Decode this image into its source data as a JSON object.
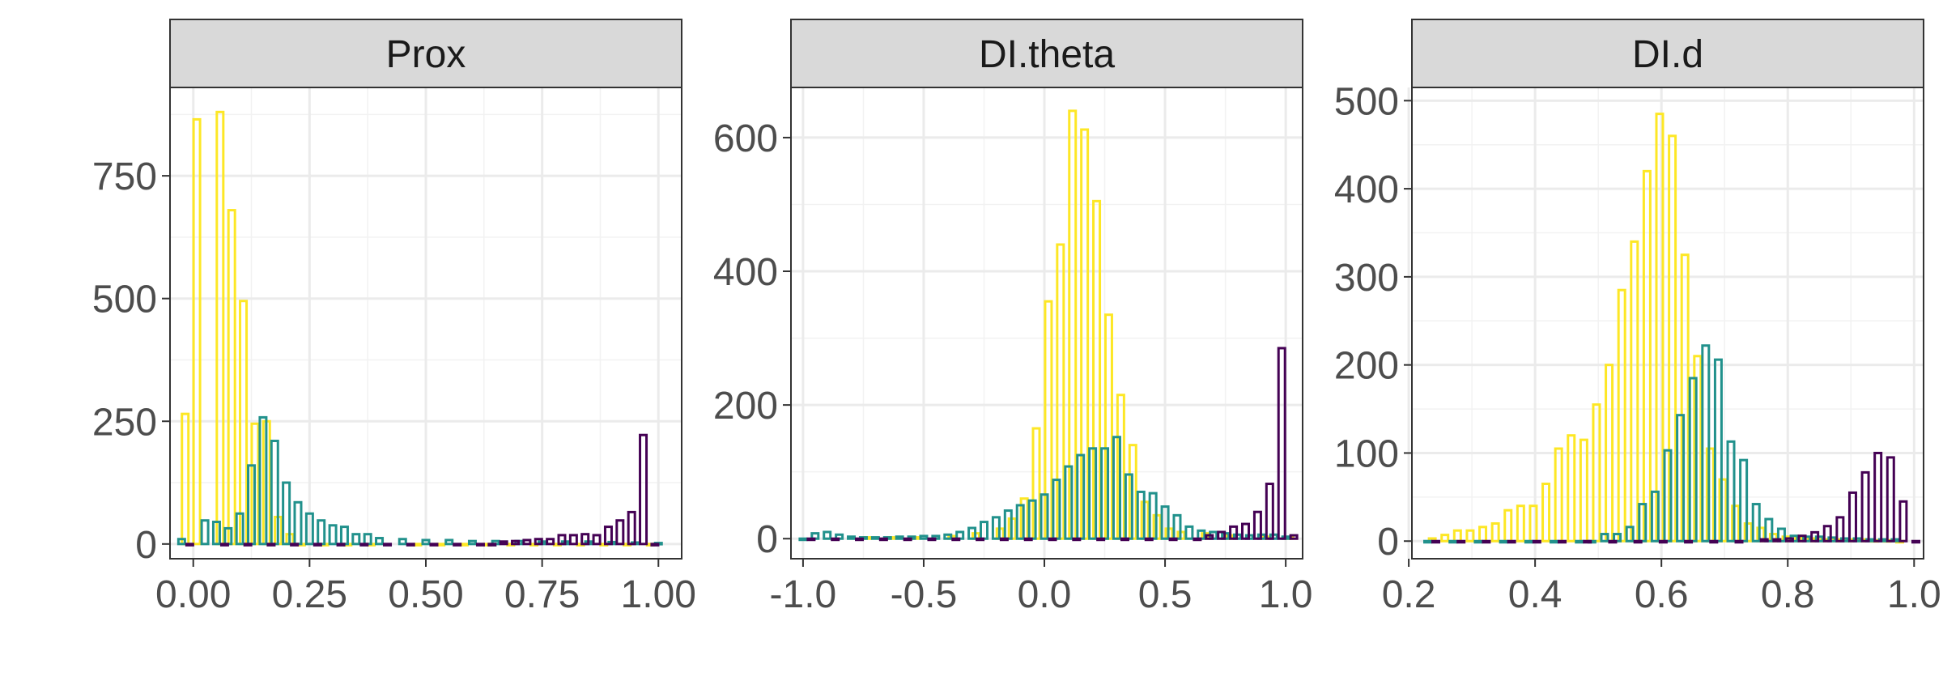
{
  "chart_data": [
    {
      "type": "bar",
      "title": "Prox",
      "xlim": [
        -0.05,
        1.05
      ],
      "ylim": [
        -30,
        930
      ],
      "xticks": [
        0.0,
        0.25,
        0.5,
        0.75,
        1.0
      ],
      "xtick_labels": [
        "0.00",
        "0.25",
        "0.50",
        "0.75",
        "1.00"
      ],
      "yticks": [
        0,
        250,
        500,
        750
      ],
      "ytick_labels": [
        "0",
        "250",
        "500",
        "750"
      ],
      "grid": true,
      "series_colors": [
        "#FDE725",
        "#21918C",
        "#440154"
      ],
      "series": [
        {
          "x": [
            0.0,
            0.025,
            0.075,
            0.1,
            0.125,
            0.15,
            0.175,
            0.2,
            0.225,
            0.25,
            0.3,
            0.35,
            0.4,
            0.5,
            0.55,
            0.6,
            0.65,
            0.7,
            0.75,
            0.8,
            0.85,
            0.9,
            0.95,
            1.0
          ],
          "values": [
            265,
            865,
            880,
            680,
            495,
            245,
            250,
            55,
            20,
            0,
            0,
            0,
            0,
            0,
            0,
            0,
            0,
            0,
            0,
            0,
            0,
            0,
            0,
            0
          ]
        },
        {
          "x": [
            -0.025,
            0.025,
            0.05,
            0.075,
            0.1,
            0.125,
            0.15,
            0.175,
            0.2,
            0.225,
            0.25,
            0.275,
            0.3,
            0.325,
            0.35,
            0.375,
            0.4,
            0.45,
            0.5,
            0.55,
            0.6,
            0.65,
            0.7,
            0.75,
            0.8,
            0.85,
            0.9,
            0.95,
            1.0
          ],
          "values": [
            10,
            48,
            45,
            32,
            62,
            160,
            258,
            210,
            125,
            85,
            62,
            48,
            38,
            35,
            20,
            20,
            12,
            10,
            8,
            8,
            6,
            6,
            6,
            5,
            5,
            5,
            4,
            3,
            2
          ]
        },
        {
          "x": [
            -0.025,
            0.05,
            0.1,
            0.15,
            0.2,
            0.25,
            0.3,
            0.35,
            0.4,
            0.45,
            0.5,
            0.55,
            0.6,
            0.625,
            0.65,
            0.675,
            0.7,
            0.725,
            0.75,
            0.775,
            0.8,
            0.825,
            0.85,
            0.875,
            0.9,
            0.925,
            0.95,
            0.975
          ],
          "values": [
            0,
            0,
            0,
            0,
            0,
            0,
            0,
            0,
            0,
            0,
            0,
            0,
            0,
            0,
            5,
            6,
            8,
            10,
            10,
            18,
            18,
            20,
            18,
            35,
            48,
            65,
            222,
            0
          ]
        }
      ]
    },
    {
      "type": "bar",
      "title": "DI.theta",
      "xlim": [
        -1.05,
        1.07
      ],
      "ylim": [
        -30,
        675
      ],
      "xticks": [
        -1.0,
        -0.5,
        0.0,
        0.5,
        1.0
      ],
      "xtick_labels": [
        "-1.0",
        "-0.5",
        "0.0",
        "0.5",
        "1.0"
      ],
      "yticks": [
        0,
        200,
        400,
        600
      ],
      "ytick_labels": [
        "0",
        "200",
        "400",
        "600"
      ],
      "grid": true,
      "series_colors": [
        "#FDE725",
        "#21918C",
        "#440154"
      ],
      "series": [
        {
          "x": [
            -0.7,
            -0.6,
            -0.5,
            -0.35,
            -0.25,
            -0.15,
            -0.1,
            -0.05,
            0.0,
            0.05,
            0.1,
            0.15,
            0.2,
            0.25,
            0.3,
            0.35,
            0.4,
            0.45,
            0.5,
            0.55,
            0.6,
            0.7,
            0.8,
            0.95,
            1.05
          ],
          "values": [
            2,
            2,
            2,
            4,
            8,
            15,
            30,
            60,
            165,
            355,
            440,
            640,
            612,
            505,
            335,
            215,
            140,
            55,
            35,
            15,
            10,
            8,
            5,
            3,
            2
          ]
        },
        {
          "x": [
            -1.0,
            -0.95,
            -0.9,
            -0.85,
            -0.8,
            -0.75,
            -0.7,
            -0.65,
            -0.6,
            -0.55,
            -0.5,
            -0.45,
            -0.4,
            -0.35,
            -0.3,
            -0.25,
            -0.2,
            -0.15,
            -0.1,
            -0.05,
            0.0,
            0.05,
            0.1,
            0.15,
            0.2,
            0.25,
            0.3,
            0.35,
            0.4,
            0.45,
            0.5,
            0.55,
            0.6,
            0.65,
            0.7,
            0.75,
            0.8,
            0.85,
            0.9,
            0.95,
            1.0
          ],
          "values": [
            0,
            8,
            10,
            6,
            3,
            2,
            2,
            2,
            3,
            3,
            4,
            4,
            6,
            10,
            16,
            25,
            32,
            42,
            50,
            57,
            66,
            88,
            108,
            125,
            135,
            135,
            152,
            96,
            70,
            68,
            48,
            35,
            18,
            12,
            10,
            8,
            6,
            5,
            6,
            6,
            3
          ]
        },
        {
          "x": [
            -1.0,
            -0.9,
            -0.8,
            -0.7,
            -0.6,
            -0.5,
            -0.4,
            -0.3,
            -0.2,
            -0.1,
            0.0,
            0.1,
            0.2,
            0.3,
            0.4,
            0.5,
            0.6,
            0.65,
            0.7,
            0.75,
            0.8,
            0.85,
            0.9,
            0.95,
            1.0
          ],
          "values": [
            0,
            0,
            0,
            0,
            0,
            0,
            0,
            0,
            0,
            0,
            0,
            0,
            0,
            0,
            0,
            0,
            0,
            5,
            10,
            18,
            22,
            40,
            82,
            285,
            5
          ]
        }
      ]
    },
    {
      "type": "bar",
      "title": "DI.d",
      "xlim": [
        0.205,
        1.015
      ],
      "ylim": [
        -20,
        515
      ],
      "xticks": [
        0.2,
        0.4,
        0.6,
        0.8,
        1.0
      ],
      "xtick_labels": [
        "0.2",
        "0.4",
        "0.6",
        "0.8",
        "1.0"
      ],
      "yticks": [
        0,
        100,
        200,
        300,
        400,
        500
      ],
      "ytick_labels": [
        "0",
        "100",
        "200",
        "300",
        "400",
        "500"
      ],
      "grid": true,
      "series_colors": [
        "#FDE725",
        "#21918C",
        "#440154"
      ],
      "series": [
        {
          "x": [
            0.25,
            0.27,
            0.29,
            0.31,
            0.33,
            0.35,
            0.37,
            0.39,
            0.41,
            0.43,
            0.45,
            0.47,
            0.49,
            0.51,
            0.53,
            0.55,
            0.57,
            0.59,
            0.61,
            0.63,
            0.65,
            0.67,
            0.69,
            0.71,
            0.73,
            0.75,
            0.77,
            0.79,
            0.81,
            0.83,
            0.85,
            0.87,
            0.89,
            0.91,
            0.93,
            0.95,
            0.97,
            0.99
          ],
          "values": [
            3,
            7,
            12,
            12,
            16,
            20,
            35,
            40,
            40,
            65,
            105,
            120,
            115,
            155,
            200,
            285,
            340,
            420,
            485,
            460,
            325,
            210,
            105,
            70,
            40,
            20,
            15,
            8,
            5,
            4,
            3,
            2,
            2,
            2,
            2,
            1,
            1,
            0
          ]
        },
        {
          "x": [
            0.23,
            0.27,
            0.31,
            0.35,
            0.39,
            0.43,
            0.47,
            0.49,
            0.51,
            0.53,
            0.55,
            0.57,
            0.59,
            0.61,
            0.63,
            0.65,
            0.67,
            0.69,
            0.71,
            0.73,
            0.75,
            0.77,
            0.79,
            0.81,
            0.83,
            0.85,
            0.87,
            0.89,
            0.91,
            0.93,
            0.95,
            0.97
          ],
          "values": [
            0,
            0,
            0,
            0,
            0,
            0,
            0,
            0,
            8,
            8,
            16,
            42,
            56,
            103,
            143,
            185,
            222,
            206,
            113,
            92,
            42,
            25,
            14,
            6,
            5,
            5,
            4,
            3,
            3,
            2,
            2,
            2
          ]
        },
        {
          "x": [
            0.23,
            0.27,
            0.31,
            0.35,
            0.39,
            0.43,
            0.47,
            0.51,
            0.55,
            0.59,
            0.63,
            0.67,
            0.71,
            0.75,
            0.77,
            0.79,
            0.81,
            0.83,
            0.85,
            0.87,
            0.89,
            0.91,
            0.93,
            0.95,
            0.97,
            0.99
          ],
          "values": [
            0,
            0,
            0,
            0,
            0,
            0,
            0,
            0,
            0,
            0,
            0,
            0,
            0,
            2,
            2,
            3,
            6,
            10,
            17,
            27,
            55,
            78,
            100,
            95,
            45,
            0
          ]
        }
      ]
    }
  ]
}
